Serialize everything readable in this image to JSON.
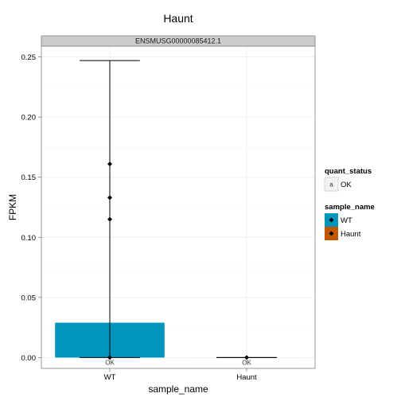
{
  "chart_data": {
    "type": "bar",
    "title": "Haunt",
    "facet_label": "ENSMUSG00000085412.1",
    "xlabel": "sample_name",
    "ylabel": "FPKM",
    "ylim": [
      -0.009,
      0.259
    ],
    "yticks": [
      0.0,
      0.05,
      0.1,
      0.15,
      0.2,
      0.25
    ],
    "ytick_labels": [
      "0.00",
      "0.05",
      "0.10",
      "0.15",
      "0.20",
      "0.25"
    ],
    "categories": [
      "WT",
      "Haunt"
    ],
    "values": [
      0.029,
      0.0
    ],
    "bar_colors": [
      "#0095bd",
      "#c25700"
    ],
    "error_bars": [
      {
        "category": "WT",
        "low": 0.0,
        "high": 0.247
      },
      {
        "category": "Haunt",
        "low": 0.0,
        "high": 0.0
      }
    ],
    "replicate_points": [
      {
        "category": "WT",
        "values": [
          0.161,
          0.133,
          0.115,
          0.0
        ]
      },
      {
        "category": "Haunt",
        "values": [
          0.0
        ]
      }
    ],
    "status_labels": [
      "OK",
      "OK"
    ],
    "grid": true,
    "legend_placement": "right",
    "legends": [
      {
        "title": "quant_status",
        "entries": [
          {
            "key": "a",
            "label": "OK"
          }
        ]
      },
      {
        "title": "sample_name",
        "entries": [
          {
            "label": "WT",
            "color": "#0095bd"
          },
          {
            "label": "Haunt",
            "color": "#c25700"
          }
        ]
      }
    ]
  }
}
